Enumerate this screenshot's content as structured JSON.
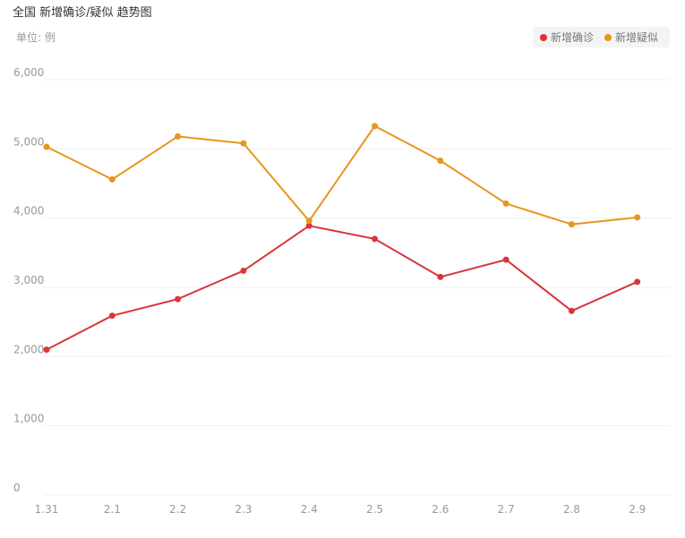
{
  "chart_data": {
    "type": "line",
    "title": "全国 新增确诊/疑似 趋势图",
    "unit_label": "单位: 例",
    "x": [
      "1.31",
      "2.1",
      "2.2",
      "2.3",
      "2.4",
      "2.5",
      "2.6",
      "2.7",
      "2.8",
      "2.9"
    ],
    "y_ticks": [
      "0",
      "1,000",
      "2,000",
      "3,000",
      "4,000",
      "5,000",
      "6,000"
    ],
    "ylim": [
      0,
      6000
    ],
    "grid": true,
    "legend_position": "top-right",
    "series": [
      {
        "name": "新增确诊",
        "color": "#d8373a",
        "values": [
          2100,
          2590,
          2830,
          3240,
          3890,
          3700,
          3150,
          3400,
          2660,
          3080
        ]
      },
      {
        "name": "新增疑似",
        "color": "#e8951c",
        "values": [
          5030,
          4560,
          5180,
          5080,
          3960,
          5330,
          4830,
          4210,
          3910,
          4010
        ]
      }
    ]
  }
}
